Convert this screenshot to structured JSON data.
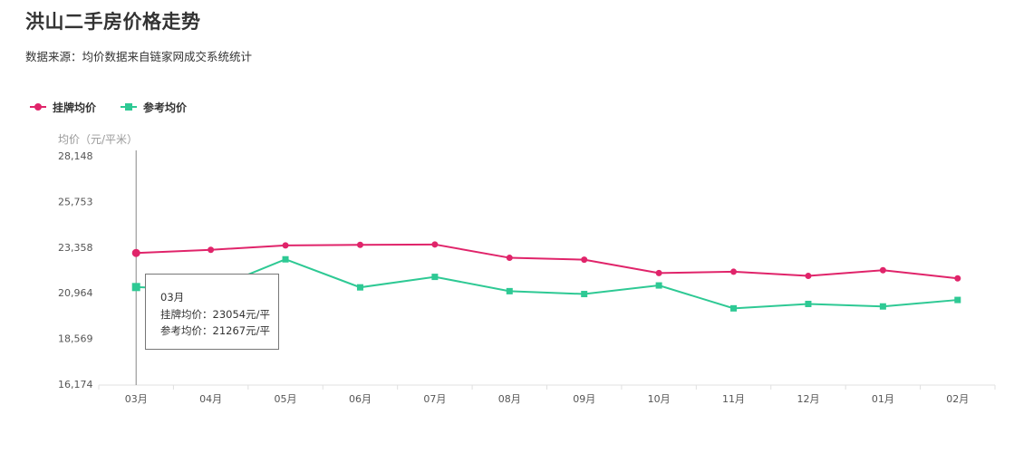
{
  "title": "洪山二手房价格走势",
  "subtitle": "数据来源：均价数据来自链家网成交系统统计",
  "y_unit": "均价（元/平米）",
  "chart_data": {
    "type": "line",
    "title": "洪山二手房价格走势",
    "ylabel": "均价（元/平米）",
    "xlabel": "",
    "categories": [
      "03月",
      "04月",
      "05月",
      "06月",
      "07月",
      "08月",
      "09月",
      "10月",
      "11月",
      "12月",
      "01月",
      "02月"
    ],
    "y_ticks": [
      "16,174",
      "18,569",
      "20,964",
      "23,358",
      "25,753",
      "28,148"
    ],
    "ylim": [
      16174,
      28148
    ],
    "grid": false,
    "legend_position": "top-left",
    "series": [
      {
        "name": "挂牌均价",
        "color": "#e0246a",
        "marker": "circle",
        "values": [
          23054,
          23220,
          23450,
          23480,
          23500,
          22800,
          22700,
          22000,
          22070,
          21850,
          22150,
          21720
        ]
      },
      {
        "name": "参考均价",
        "color": "#2ec994",
        "marker": "square",
        "values": [
          21267,
          21130,
          22720,
          21250,
          21800,
          21050,
          20900,
          21350,
          20150,
          20380,
          20250,
          20590
        ]
      }
    ]
  },
  "tooltip": {
    "month": "03月",
    "line1": "挂牌均价：23054元/平",
    "line2": "参考均价：21267元/平"
  }
}
